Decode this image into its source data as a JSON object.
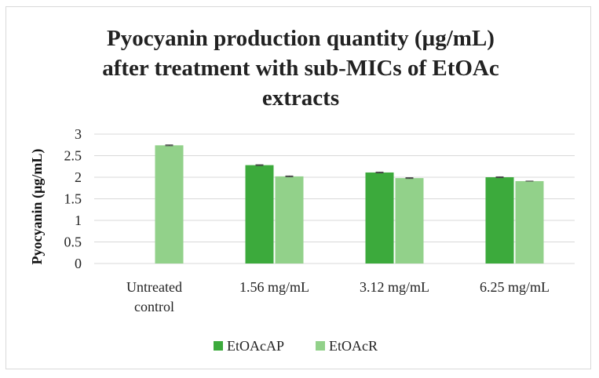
{
  "chart_data": {
    "type": "bar",
    "title_lines": [
      "Pyocyanin production quantity (µg/mL)",
      "after treatment with sub-MICs of EtOAc",
      "extracts"
    ],
    "xlabel": "",
    "ylabel": "Pyocyanin (µg/mL)",
    "ylim": [
      0,
      3
    ],
    "yticks": [
      "0",
      "0.5",
      "1",
      "1.5",
      "2",
      "2.5",
      "3"
    ],
    "categories": [
      [
        "Untreated",
        "control"
      ],
      [
        "1.56 mg/mL"
      ],
      [
        "3.12 mg/mL"
      ],
      [
        "6.25 mg/mL"
      ]
    ],
    "series": [
      {
        "name": "EtOAcAP",
        "color": "#3caa3c",
        "values": [
          null,
          2.28,
          2.11,
          2.0
        ],
        "errors": [
          null,
          0.01,
          0.01,
          0.01
        ]
      },
      {
        "name": "EtOAcR",
        "color": "#92d18a",
        "values": [
          2.74,
          2.02,
          1.98,
          1.91
        ],
        "errors": [
          0.01,
          0.01,
          0.01,
          0.0
        ]
      }
    ],
    "grid": true,
    "legend_position": "bottom"
  }
}
